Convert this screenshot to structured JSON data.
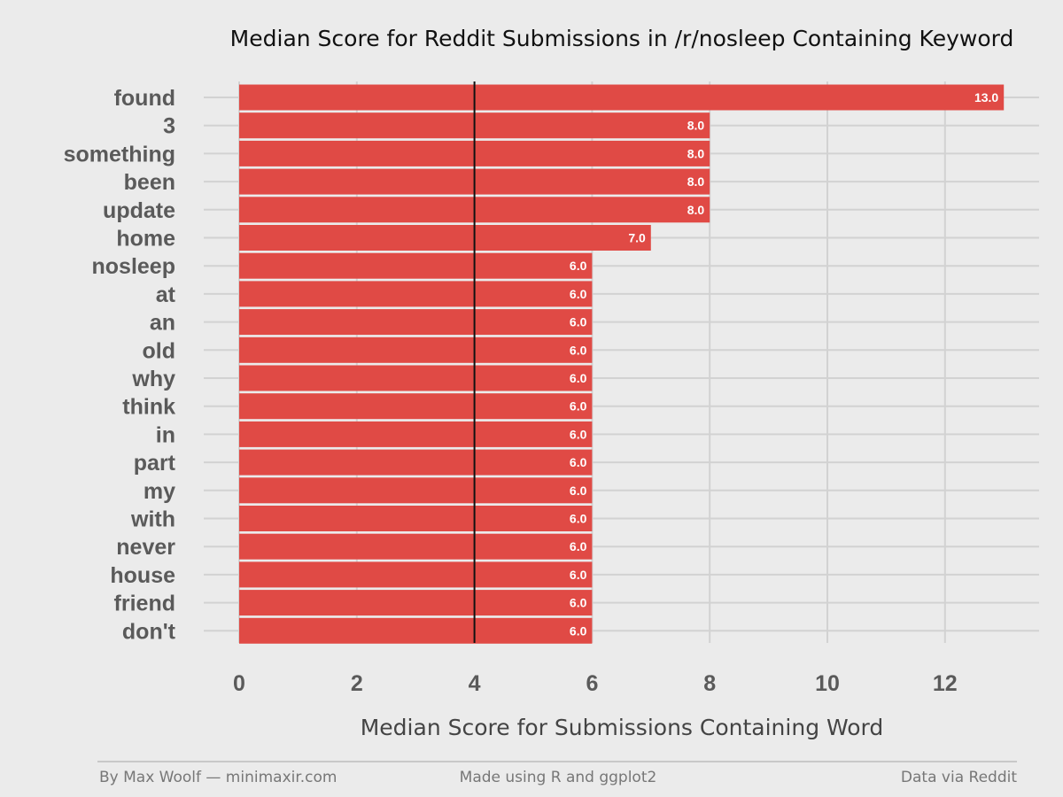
{
  "chart_data": {
    "type": "bar",
    "orientation": "horizontal",
    "title": "Median Score for Reddit Submissions in /r/nosleep Containing Keyword",
    "xlabel": "Median Score for Submissions Containing Word",
    "ylabel": "",
    "categories": [
      "found",
      "3",
      "something",
      "been",
      "update",
      "home",
      "nosleep",
      "at",
      "an",
      "old",
      "why",
      "think",
      "in",
      "part",
      "my",
      "with",
      "never",
      "house",
      "friend",
      "don't"
    ],
    "values": [
      13,
      8,
      8,
      8,
      8,
      7,
      6,
      6,
      6,
      6,
      6,
      6,
      6,
      6,
      6,
      6,
      6,
      6,
      6,
      6
    ],
    "data_labels": [
      "13.0",
      "8.0",
      "8.0",
      "8.0",
      "8.0",
      "7.0",
      "6.0",
      "6.0",
      "6.0",
      "6.0",
      "6.0",
      "6.0",
      "6.0",
      "6.0",
      "6.0",
      "6.0",
      "6.0",
      "6.0",
      "6.0",
      "6.0"
    ],
    "xlim": [
      0,
      13.5
    ],
    "xticks": [
      "0",
      "2",
      "4",
      "6",
      "8",
      "10",
      "12"
    ],
    "reference_line": 4,
    "bar_color": "#e04a45",
    "grid": true,
    "legend": "none"
  },
  "footer": {
    "left": "By Max Woolf — minimaxir.com",
    "center": "Made using R and ggplot2",
    "right": "Data via Reddit"
  }
}
